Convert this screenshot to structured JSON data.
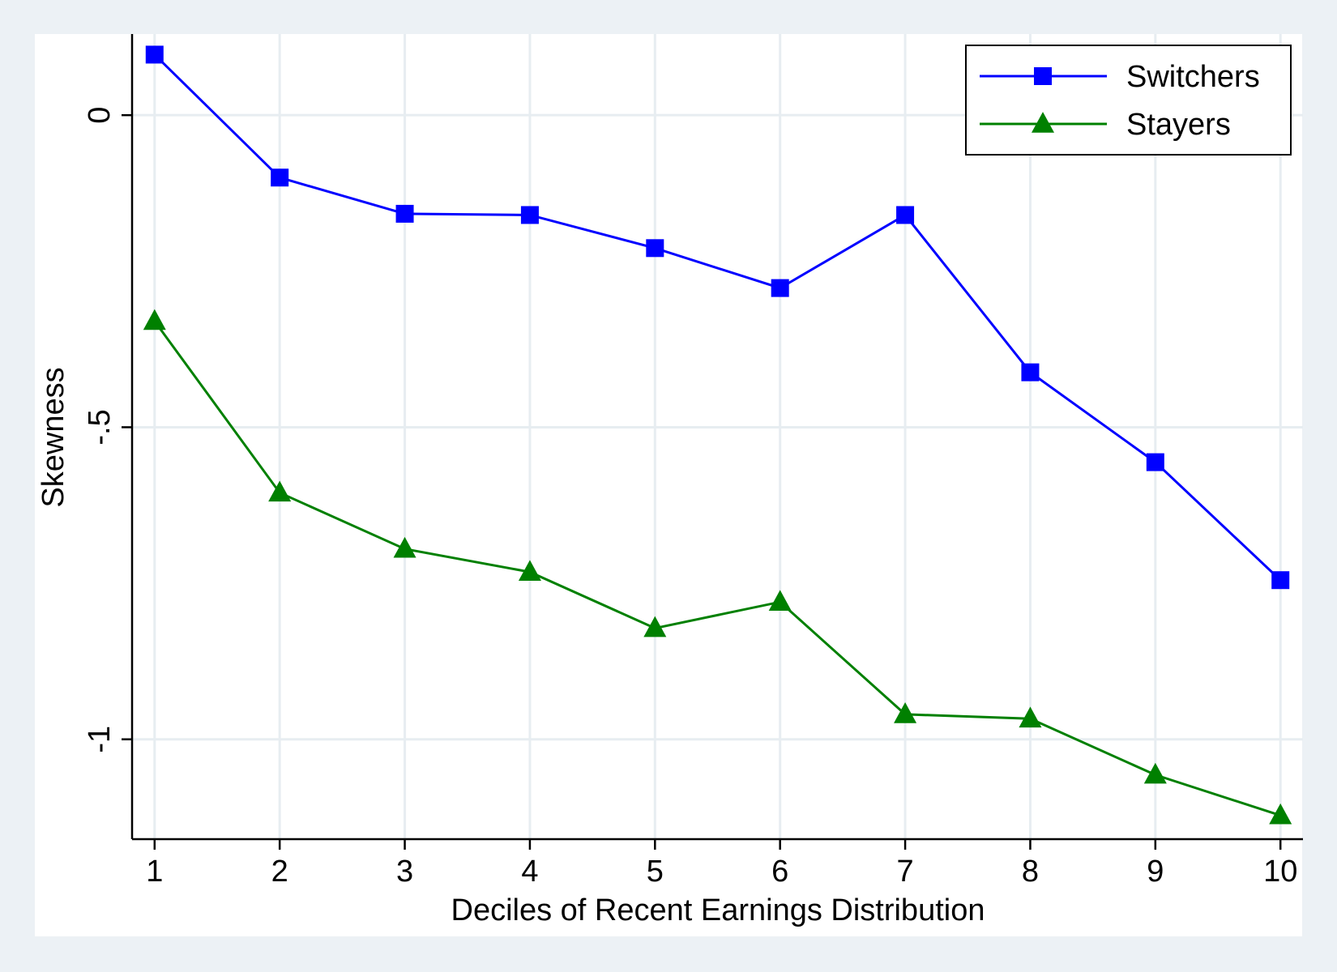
{
  "chart_data": {
    "type": "line",
    "title": "",
    "xlabel": "Deciles of Recent Earnings Distribution",
    "ylabel": "Skewness",
    "categories": [
      1,
      2,
      3,
      4,
      5,
      6,
      7,
      8,
      9,
      10
    ],
    "x_tick_labels": [
      "1",
      "2",
      "3",
      "4",
      "5",
      "6",
      "7",
      "8",
      "9",
      "10"
    ],
    "y_ticks": [
      0,
      -0.5,
      -1
    ],
    "y_tick_labels": [
      "0",
      "-.5",
      "-1"
    ],
    "ylim": [
      -1.16,
      0.13
    ],
    "xlim": [
      0.82,
      10.18
    ],
    "grid": true,
    "legend_position": "top-right",
    "series": [
      {
        "name": "Switchers",
        "color": "#0000ff",
        "marker": "square",
        "values": [
          0.097,
          -0.1,
          -0.158,
          -0.16,
          -0.213,
          -0.277,
          -0.16,
          -0.412,
          -0.556,
          -0.745
        ]
      },
      {
        "name": "Stayers",
        "color": "#008000",
        "marker": "triangle",
        "values": [
          -0.33,
          -0.605,
          -0.695,
          -0.732,
          -0.822,
          -0.78,
          -0.96,
          -0.967,
          -1.057,
          -1.122
        ]
      }
    ],
    "colors": {
      "background": "#ecf1f5",
      "plot_background": "#ffffff",
      "grid": "#e7edf1",
      "axis": "#000000"
    }
  }
}
